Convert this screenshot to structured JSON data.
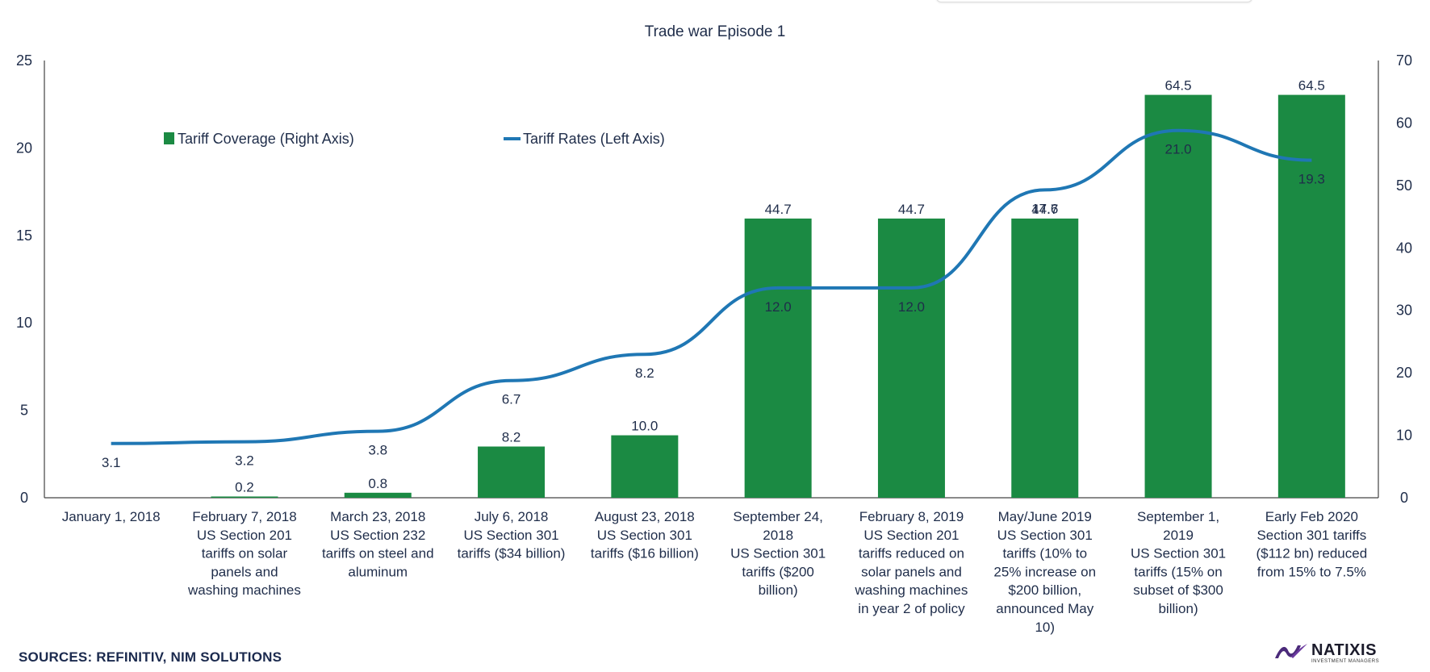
{
  "chart_data": {
    "type": "bar",
    "title": "Trade war Episode 1",
    "categories": [
      [
        "January 1, 2018"
      ],
      [
        "February 7, 2018",
        "US Section 201",
        "tariffs on solar",
        "panels and",
        "washing machines"
      ],
      [
        "March 23, 2018",
        "US Section 232",
        "tariffs on steel and",
        "aluminum"
      ],
      [
        "July 6, 2018",
        "US Section 301",
        "tariffs ($34 billion)"
      ],
      [
        "August 23, 2018",
        "US Section 301",
        "tariffs ($16 billion)"
      ],
      [
        "September 24,",
        "2018",
        "US Section 301",
        "tariffs ($200",
        "billion)"
      ],
      [
        "February 8, 2019",
        "US Section 201",
        "tariffs reduced on",
        "solar panels and",
        "washing machines",
        "in year 2 of policy"
      ],
      [
        "May/June 2019",
        "US Section 301",
        "tariffs (10% to",
        "25% increase on",
        "$200 billion,",
        "announced May",
        "10)"
      ],
      [
        "September 1,",
        "2019",
        "US Section 301",
        "tariffs (15% on",
        "subset of $300",
        "billion)"
      ],
      [
        "Early Feb 2020",
        "Section 301 tariffs",
        "($112 bn) reduced",
        "from 15% to 7.5%"
      ]
    ],
    "series": [
      {
        "name": "Tariff Coverage (Right Axis)",
        "type": "bar",
        "axis": "right",
        "color": "#1b8a43",
        "values": [
          null,
          0.2,
          0.8,
          8.2,
          10.0,
          44.7,
          44.7,
          44.7,
          64.5,
          64.5
        ],
        "labels": [
          "",
          "0.2",
          "0.8",
          "8.2",
          "10.0",
          "44.7",
          "44.7",
          "44.7",
          "64.5",
          "64.5"
        ]
      },
      {
        "name": "Tariff Rates (Left Axis)",
        "type": "line",
        "axis": "left",
        "color": "#1f77b4",
        "values": [
          3.1,
          3.2,
          3.8,
          6.7,
          8.2,
          12.0,
          12.0,
          17.6,
          21.0,
          19.3
        ],
        "labels": [
          "3.1",
          "3.2",
          "3.8",
          "6.7",
          "8.2",
          "12.0",
          "12.0",
          "17.6",
          "21.0",
          "19.3"
        ]
      }
    ],
    "y_left": {
      "ylim": [
        0,
        25
      ],
      "ticks": [
        "0",
        "5",
        "10",
        "15",
        "20",
        "25"
      ]
    },
    "y_right": {
      "ylim": [
        0,
        70
      ],
      "ticks": [
        "0",
        "10",
        "20",
        "30",
        "40",
        "50",
        "60",
        "70"
      ]
    },
    "grid": false,
    "legend": "top-left"
  },
  "footer": {
    "sources": "SOURCES: REFINITIV, NIM SOLUTIONS",
    "logo_name": "NATIXIS",
    "logo_sub": "INVESTMENT MANAGERS"
  }
}
